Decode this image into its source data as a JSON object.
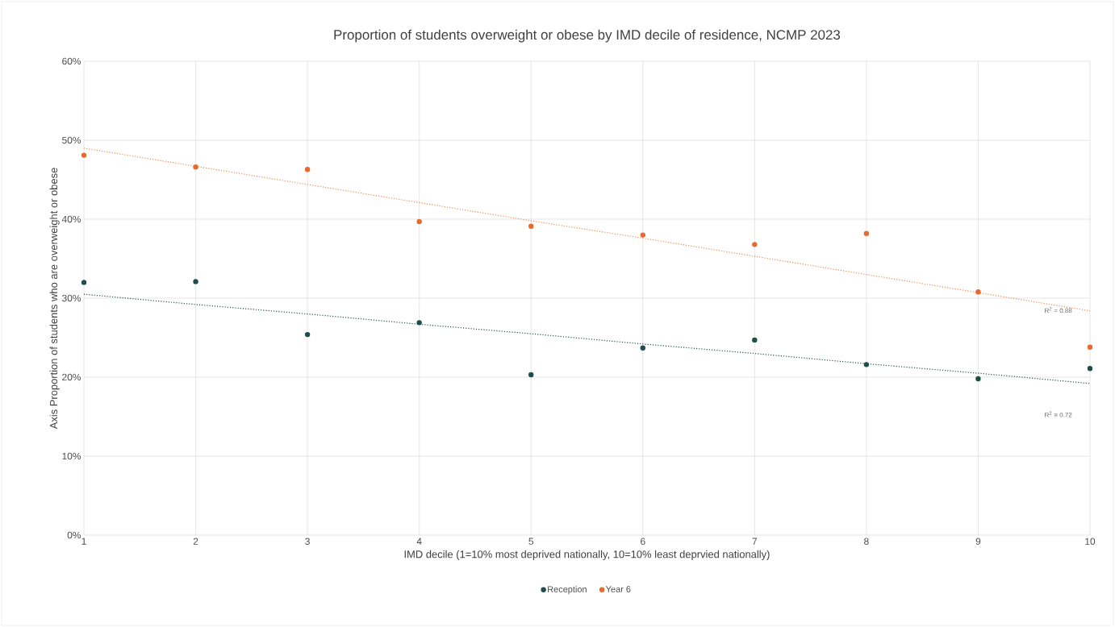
{
  "chart_data": {
    "type": "scatter",
    "title": "Proportion of students overweight or obese by IMD decile of residence, NCMP 2023",
    "xlabel": "IMD decile (1=10% most deprived nationally, 10=10% least deprvied nationally)",
    "ylabel": "Axis Proportion of students who are overweight or obese",
    "x": [
      1,
      2,
      3,
      4,
      5,
      6,
      7,
      8,
      9,
      10
    ],
    "series": [
      {
        "name": "Reception",
        "color": "#1f4e4a",
        "marker": "circle",
        "values": [
          32.0,
          32.1,
          25.4,
          26.9,
          20.3,
          23.7,
          24.7,
          21.6,
          19.8,
          21.1
        ]
      },
      {
        "name": "Year 6",
        "color": "#e8692e",
        "marker": "circle",
        "values": [
          48.1,
          46.6,
          46.3,
          39.7,
          39.1,
          38.0,
          36.8,
          38.2,
          30.8,
          23.8
        ]
      },
      {
        "type": "line",
        "color": "#2f4f4f",
        "values": [
          30.5,
          29.2,
          28.0,
          26.7,
          25.5,
          24.2,
          23.0,
          21.7,
          20.5,
          19.2
        ],
        "marker": "none",
        "line_style": "dotted"
      },
      {
        "type": "line",
        "color": "#f08a4b",
        "values": [
          49.0,
          46.7,
          44.4,
          42.1,
          39.8,
          37.6,
          35.3,
          33.0,
          30.7,
          28.4
        ],
        "marker": "none",
        "line_style": "dotted"
      }
    ],
    "annotations": [
      "R$^{2}$ = 0.88",
      "R$^{2}$ = 0.72"
    ],
    "xlim": [
      1,
      10
    ],
    "xticks": [
      1,
      2,
      3,
      4,
      5,
      6,
      7,
      8,
      9,
      10
    ],
    "ylim": [
      0,
      60
    ],
    "yticks": [
      {
        "value": 0,
        "label": "0%"
      },
      {
        "value": 10,
        "label": "10%"
      },
      {
        "value": 20,
        "label": "20%"
      },
      {
        "value": 30,
        "label": "30%"
      },
      {
        "value": 40,
        "label": "40%"
      },
      {
        "value": 50,
        "label": "50%"
      },
      {
        "value": 60,
        "label": "60%"
      }
    ],
    "grid": true,
    "legend": "bottom"
  }
}
